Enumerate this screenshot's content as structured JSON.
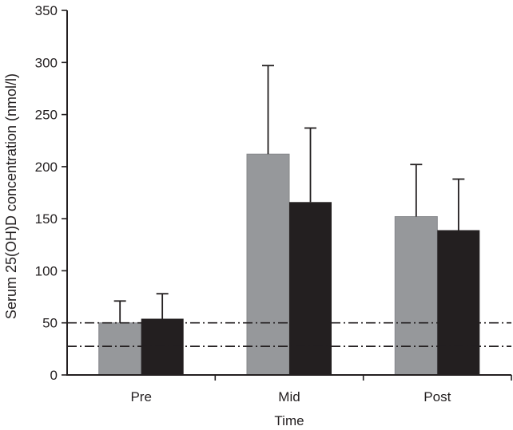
{
  "figure": {
    "background": "#ffffff",
    "axis_color": "#231f20"
  },
  "chart_data": {
    "type": "bar",
    "title": "",
    "xlabel": "Time",
    "ylabel": "Serum 25(OH)D concentration (nmol/l)",
    "categories": [
      "Pre",
      "Mid",
      "Post"
    ],
    "series": [
      {
        "name": "gray-group",
        "color": "#96989b",
        "edge": "#85878a",
        "values": [
          50,
          212,
          152
        ],
        "error_up": [
          21,
          85,
          50
        ]
      },
      {
        "name": "black-group",
        "color": "#231f20",
        "edge": "none",
        "values": [
          54,
          166,
          139
        ],
        "error_up": [
          24,
          71,
          49
        ]
      }
    ],
    "ylim": [
      0,
      350
    ],
    "yticks": [
      0,
      50,
      100,
      150,
      200,
      250,
      300,
      350
    ],
    "reference_lines": [
      {
        "value": 50,
        "style": "dash-dot"
      },
      {
        "value": 27.5,
        "style": "dash-dot"
      }
    ],
    "error_bars": "upper-only",
    "legend": "none",
    "grid": false
  }
}
